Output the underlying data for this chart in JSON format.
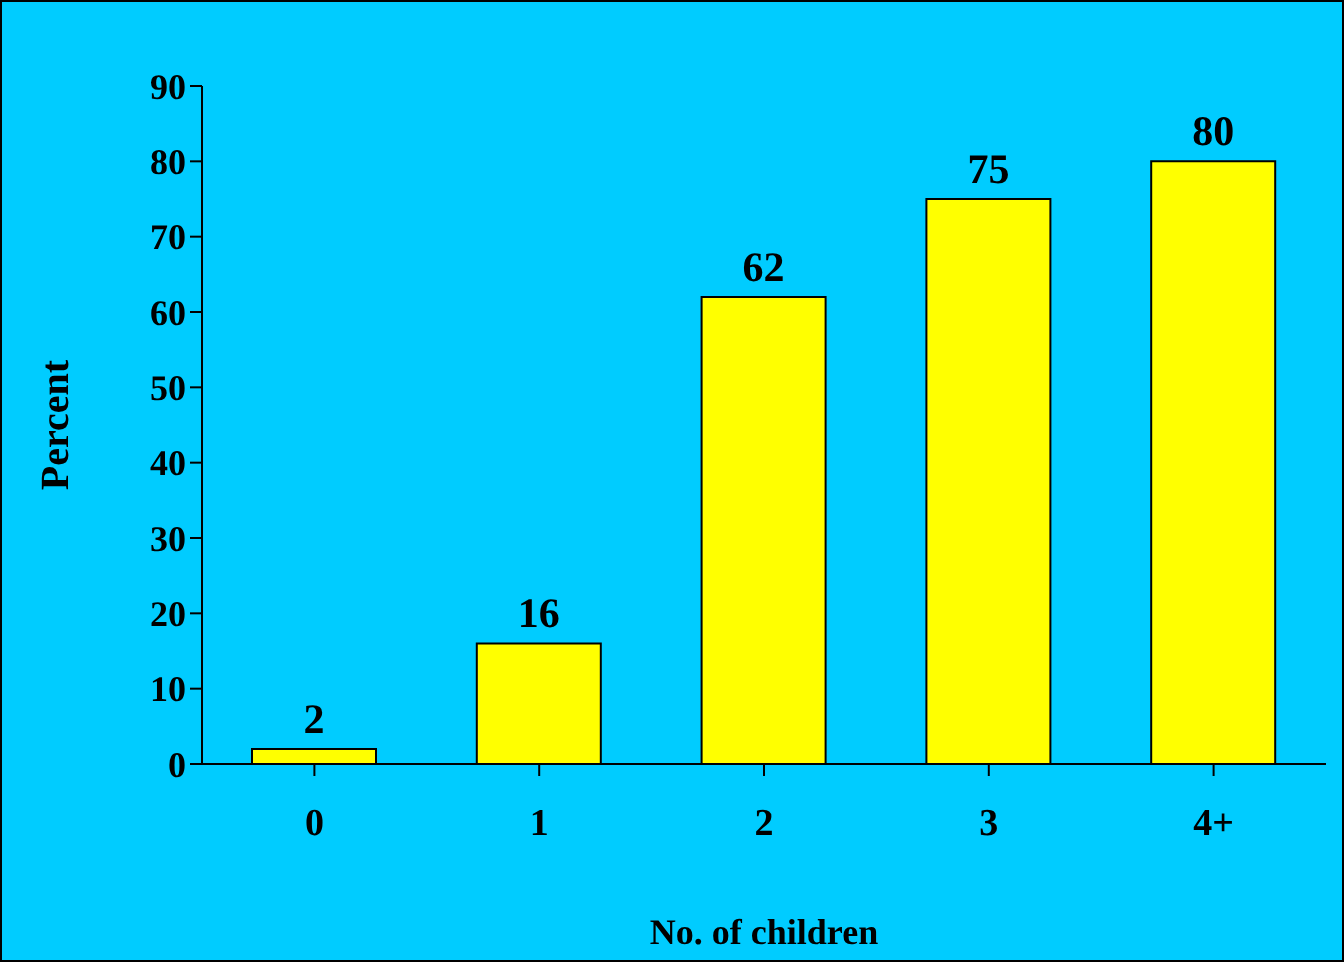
{
  "chart_data": {
    "type": "bar",
    "xlabel": "No. of children",
    "ylabel": "Percent",
    "categories": [
      "0",
      "1",
      "2",
      "3",
      "4+"
    ],
    "values": [
      2,
      16,
      62,
      75,
      80
    ],
    "color": "#ffff00",
    "ylim": [
      0,
      90
    ],
    "yticks": [
      0,
      10,
      20,
      30,
      40,
      50,
      60,
      70,
      80,
      90
    ],
    "grid": false,
    "data_labels": true,
    "legend": false
  }
}
